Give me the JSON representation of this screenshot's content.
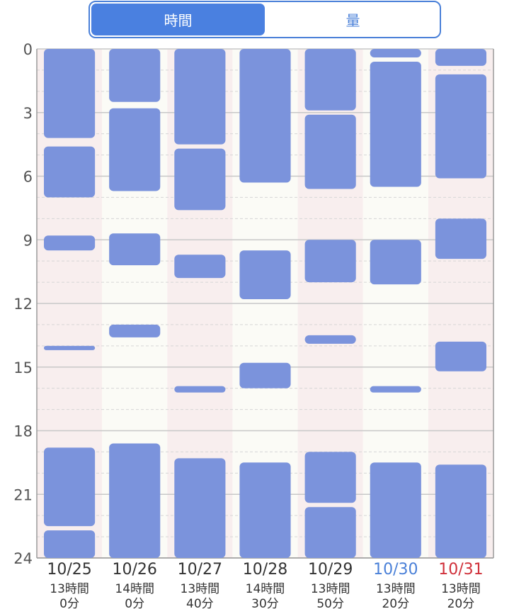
{
  "toggle": {
    "options": [
      {
        "label": "時間",
        "active": true
      },
      {
        "label": "量",
        "active": false
      }
    ],
    "accent": "#4a80e0"
  },
  "chart_data": {
    "type": "bar",
    "orientation": "vertical-ranges",
    "ylim": [
      0,
      24
    ],
    "y_ticks": [
      "0",
      "3",
      "6",
      "9",
      "12",
      "15",
      "18",
      "21",
      "24"
    ],
    "grid": true,
    "bar_color": "#7b93dc",
    "days": [
      {
        "date": "10/25",
        "total_line1": "13時間",
        "total_line2": "0分",
        "label_color": "#333333",
        "background": "#f8eeee",
        "sleep": [
          [
            0,
            4.2
          ],
          [
            4.6,
            7.0
          ],
          [
            8.8,
            9.5
          ],
          [
            14.0,
            14.2
          ],
          [
            18.8,
            22.5
          ],
          [
            22.7,
            24
          ]
        ]
      },
      {
        "date": "10/26",
        "total_line1": "14時間",
        "total_line2": "0分",
        "label_color": "#333333",
        "background": "#fbfbf6",
        "sleep": [
          [
            0,
            2.5
          ],
          [
            2.8,
            6.7
          ],
          [
            8.7,
            10.2
          ],
          [
            13.0,
            13.6
          ],
          [
            18.6,
            24
          ]
        ]
      },
      {
        "date": "10/27",
        "total_line1": "13時間",
        "total_line2": "40分",
        "label_color": "#333333",
        "background": "#f8eeee",
        "sleep": [
          [
            0,
            4.5
          ],
          [
            4.7,
            7.6
          ],
          [
            9.7,
            10.8
          ],
          [
            15.9,
            16.2
          ],
          [
            19.3,
            24
          ]
        ]
      },
      {
        "date": "10/28",
        "total_line1": "14時間",
        "total_line2": "30分",
        "label_color": "#333333",
        "background": "#fbfbf6",
        "sleep": [
          [
            0,
            6.3
          ],
          [
            9.5,
            11.8
          ],
          [
            14.8,
            16.0
          ],
          [
            19.5,
            24
          ]
        ]
      },
      {
        "date": "10/29",
        "total_line1": "13時間",
        "total_line2": "50分",
        "label_color": "#333333",
        "background": "#f8eeee",
        "sleep": [
          [
            0,
            2.9
          ],
          [
            3.1,
            6.6
          ],
          [
            9.0,
            11.0
          ],
          [
            13.5,
            13.9
          ],
          [
            19.0,
            21.4
          ],
          [
            21.6,
            24
          ]
        ]
      },
      {
        "date": "10/30",
        "total_line1": "13時間",
        "total_line2": "20分",
        "label_color": "#4a80d8",
        "background": "#fbfbf6",
        "sleep": [
          [
            0,
            0.4
          ],
          [
            0.6,
            6.5
          ],
          [
            9.0,
            11.1
          ],
          [
            15.9,
            16.2
          ],
          [
            19.5,
            24
          ]
        ]
      },
      {
        "date": "10/31",
        "total_line1": "13時間",
        "total_line2": "20分",
        "label_color": "#d0303a",
        "background": "#f8eeee",
        "sleep": [
          [
            0,
            0.8
          ],
          [
            1.2,
            6.1
          ],
          [
            8.0,
            9.9
          ],
          [
            13.8,
            15.2
          ],
          [
            19.6,
            24
          ]
        ]
      }
    ]
  }
}
